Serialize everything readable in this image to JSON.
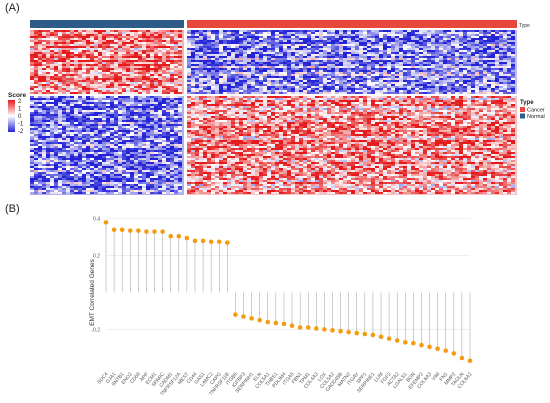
{
  "panels": {
    "a_label": "(A)",
    "b_label": "(B)"
  },
  "chart_data": [
    {
      "type": "heatmap",
      "panel": "(A)",
      "annotation_title": "Type",
      "groups": [
        {
          "name": "Normal",
          "color": "#2e5b87"
        },
        {
          "name": "Cancer",
          "color": "#e8473b"
        }
      ],
      "gene_blocks": [
        "upper",
        "lower"
      ],
      "color_legend": {
        "title": "Score",
        "ticks": [
          2,
          1,
          0,
          -1,
          -2
        ],
        "low_color": "#2424d6",
        "mid_color": "#ffffff",
        "high_color": "#e41a1c"
      },
      "pattern": {
        "upper_block": {
          "Normal": "high",
          "Cancer": "low"
        },
        "lower_block": {
          "Normal": "low",
          "Cancer": "high"
        }
      }
    },
    {
      "type": "scatter",
      "style": "lollipop",
      "panel": "(B)",
      "ylabel": "EMT Correlated Genes",
      "ylim": [
        -0.42,
        0.42
      ],
      "yticks": [
        0.4,
        0.2,
        -0.2
      ],
      "point_color": "#f39c12",
      "categories": [
        "SDC4",
        "GJA1",
        "SNTB1",
        "ENO2",
        "CD59",
        "APP",
        "ECM1",
        "SPARC",
        "CADM1",
        "TNFRSF12A",
        "MEST",
        "CD44",
        "GAS1",
        "LAMC2",
        "CAPG",
        "TNFRSF11B",
        "ITGB5",
        "IGFBP3",
        "SERPINH1",
        "ELN",
        "COL5A1",
        "THBS1",
        "PDLIM4",
        "ITGA5",
        "FBN1",
        "TPM1",
        "COL4A3",
        "LOX",
        "COL5A2",
        "GADD45B",
        "MATN2",
        "ITGAV",
        "SPP1",
        "SERPINE1",
        "LUM",
        "FGF2",
        "ACTA2",
        "LGALS1",
        "BGN",
        "EFEMP2",
        "COL6A3",
        "VIM",
        "FN1",
        "MMP2",
        "TAGLN",
        "COL6A2"
      ],
      "values": [
        0.38,
        0.34,
        0.34,
        0.335,
        0.335,
        0.33,
        0.33,
        0.33,
        0.305,
        0.305,
        0.295,
        0.28,
        0.28,
        0.275,
        0.275,
        0.27,
        -0.12,
        -0.13,
        -0.14,
        -0.15,
        -0.16,
        -0.165,
        -0.17,
        -0.18,
        -0.19,
        -0.19,
        -0.195,
        -0.2,
        -0.205,
        -0.21,
        -0.215,
        -0.22,
        -0.225,
        -0.23,
        -0.24,
        -0.25,
        -0.26,
        -0.27,
        -0.275,
        -0.285,
        -0.295,
        -0.305,
        -0.315,
        -0.33,
        -0.355,
        -0.37
      ]
    }
  ]
}
